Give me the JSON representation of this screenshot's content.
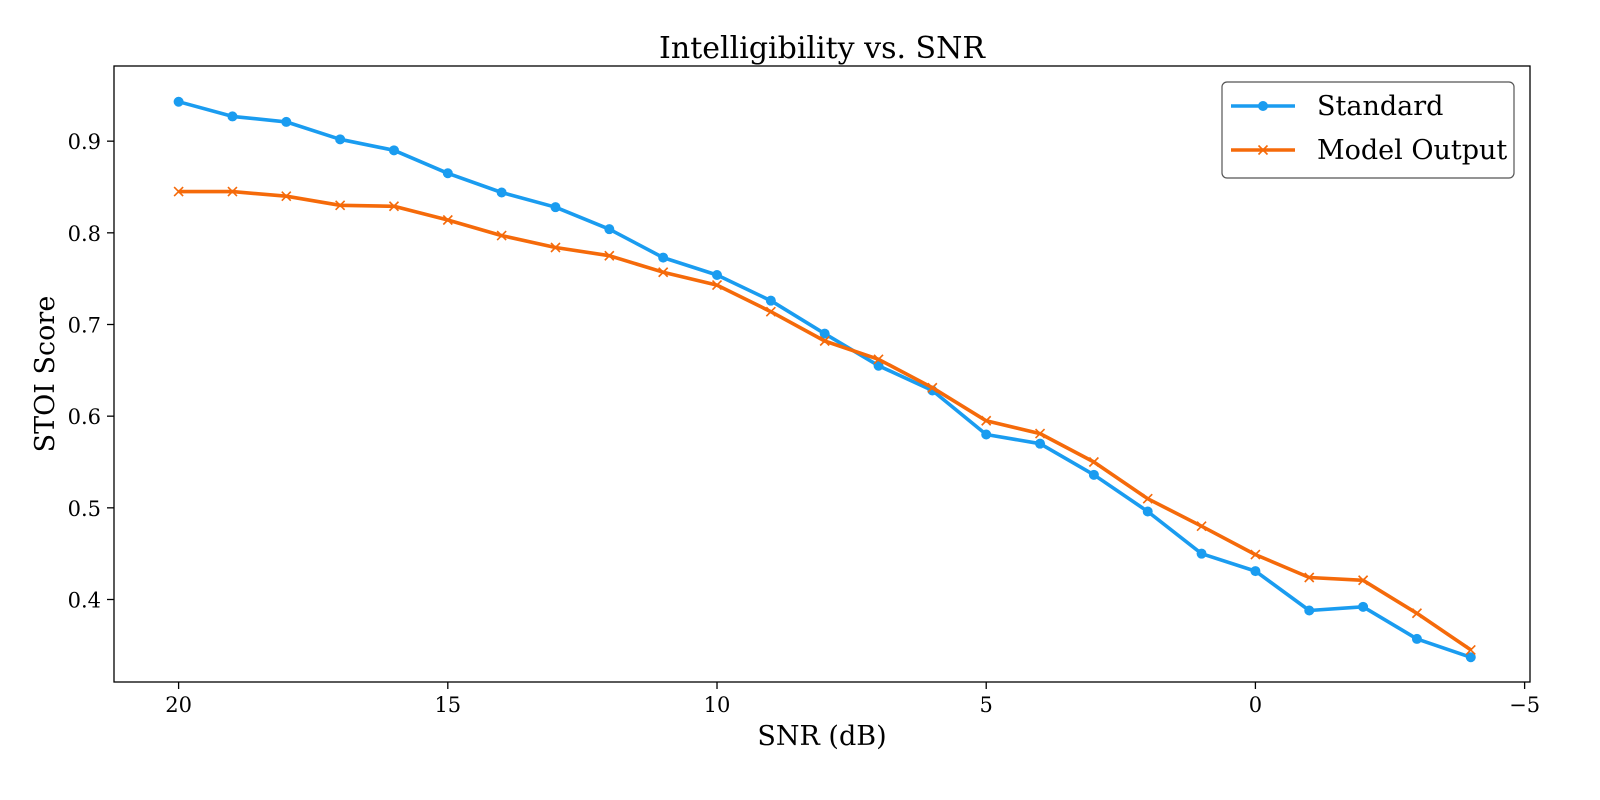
{
  "chart_data": {
    "type": "line",
    "title": "Intelligibility vs. SNR",
    "xlabel": "SNR (dB)",
    "ylabel": "STOI Score",
    "xlim": [
      21.2,
      -5.1
    ],
    "ylim": [
      0.31,
      0.982
    ],
    "x_ticks": [
      20,
      15,
      10,
      5,
      0,
      -5
    ],
    "x_tick_labels": [
      "20",
      "15",
      "10",
      "5",
      "0",
      "−5"
    ],
    "y_ticks": [
      0.4,
      0.5,
      0.6,
      0.7,
      0.8,
      0.9
    ],
    "y_tick_labels": [
      "0.4",
      "0.5",
      "0.6",
      "0.7",
      "0.8",
      "0.9"
    ],
    "grid": false,
    "legend_position": "top-right",
    "x": [
      20,
      19,
      18,
      17,
      16,
      15,
      14,
      13,
      12,
      11,
      10,
      9,
      8,
      7,
      6,
      5,
      4,
      3,
      2,
      1,
      0,
      -1,
      -2,
      -3,
      -4
    ],
    "series": [
      {
        "name": "Standard",
        "color": "#1a9cf0",
        "marker": "circle",
        "values": [
          0.943,
          0.927,
          0.921,
          0.902,
          0.89,
          0.865,
          0.844,
          0.828,
          0.804,
          0.773,
          0.754,
          0.726,
          0.69,
          0.655,
          0.628,
          0.58,
          0.57,
          0.536,
          0.496,
          0.45,
          0.431,
          0.388,
          0.392,
          0.357,
          0.337
        ]
      },
      {
        "name": "Model Output",
        "color": "#f56a0a",
        "marker": "x",
        "values": [
          0.845,
          0.845,
          0.84,
          0.83,
          0.829,
          0.814,
          0.797,
          0.784,
          0.775,
          0.757,
          0.743,
          0.714,
          0.682,
          0.662,
          0.631,
          0.595,
          0.581,
          0.55,
          0.51,
          0.48,
          0.449,
          0.424,
          0.421,
          0.385,
          0.345
        ]
      }
    ]
  }
}
